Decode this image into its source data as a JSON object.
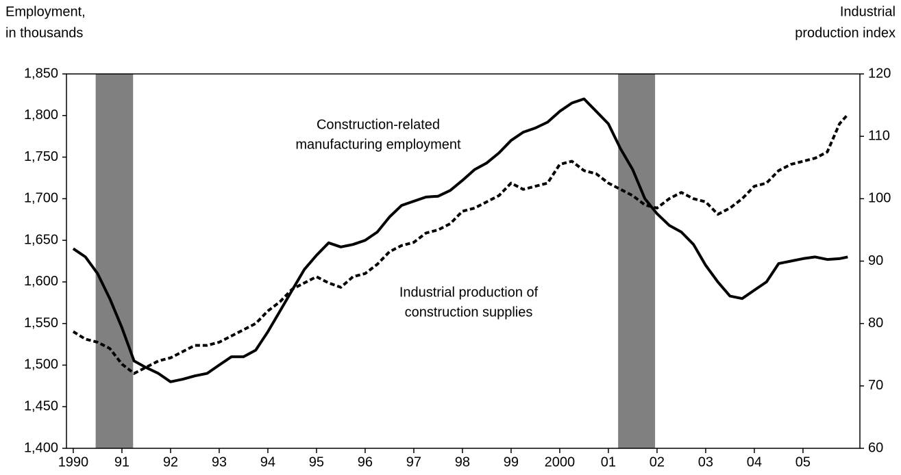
{
  "chart_data": {
    "type": "line",
    "ylabel": [
      "Employment,",
      "in thousands"
    ],
    "y2label": [
      "Industrial",
      "production index"
    ],
    "annotations": [
      [
        "Construction-related",
        "manufacturing employment"
      ],
      [
        "Industrial production of",
        "construction supplies"
      ]
    ],
    "shaded_periods": [
      [
        1990.46,
        1991.23
      ],
      [
        2001.2,
        2001.96
      ]
    ],
    "shade_color": "#808080",
    "xlim": [
      1989.86,
      2006.17
    ],
    "xticks": [
      {
        "value": 1990,
        "label": "1990"
      },
      {
        "value": 1991,
        "label": "91"
      },
      {
        "value": 1992,
        "label": "92"
      },
      {
        "value": 1993,
        "label": "93"
      },
      {
        "value": 1994,
        "label": "94"
      },
      {
        "value": 1995,
        "label": "95"
      },
      {
        "value": 1996,
        "label": "96"
      },
      {
        "value": 1997,
        "label": "97"
      },
      {
        "value": 1998,
        "label": "98"
      },
      {
        "value": 1999,
        "label": "99"
      },
      {
        "value": 2000,
        "label": "2000"
      },
      {
        "value": 2001,
        "label": "01"
      },
      {
        "value": 2002,
        "label": "02"
      },
      {
        "value": 2003,
        "label": "03"
      },
      {
        "value": 2004,
        "label": "04"
      },
      {
        "value": 2005,
        "label": "05"
      }
    ],
    "ylim": [
      1400,
      1850
    ],
    "yticks": [
      {
        "value": 1400,
        "label": "1,400"
      },
      {
        "value": 1450,
        "label": "1,450"
      },
      {
        "value": 1500,
        "label": "1,500"
      },
      {
        "value": 1550,
        "label": "1,550"
      },
      {
        "value": 1600,
        "label": "1,600"
      },
      {
        "value": 1650,
        "label": "1,650"
      },
      {
        "value": 1700,
        "label": "1,700"
      },
      {
        "value": 1750,
        "label": "1,750"
      },
      {
        "value": 1800,
        "label": "1,800"
      },
      {
        "value": 1850,
        "label": "1,850"
      }
    ],
    "y2lim": [
      60,
      120
    ],
    "y2ticks": [
      60,
      70,
      80,
      90,
      100,
      110,
      120
    ],
    "x": [
      1990,
      1990.25,
      1990.5,
      1990.75,
      1991,
      1991.25,
      1991.5,
      1991.75,
      1992,
      1992.25,
      1992.5,
      1992.75,
      1993,
      1993.25,
      1993.5,
      1993.75,
      1994,
      1994.25,
      1994.5,
      1994.75,
      1995,
      1995.25,
      1995.5,
      1995.75,
      1996,
      1996.25,
      1996.5,
      1996.75,
      1997,
      1997.25,
      1997.5,
      1997.75,
      1998,
      1998.25,
      1998.5,
      1998.75,
      1999,
      1999.25,
      1999.5,
      1999.75,
      2000,
      2000.25,
      2000.5,
      2000.75,
      2001,
      2001.25,
      2001.5,
      2001.75,
      2002,
      2002.25,
      2002.5,
      2002.75,
      2003,
      2003.25,
      2003.5,
      2003.75,
      2004,
      2004.25,
      2004.5,
      2004.75,
      2005,
      2005.25,
      2005.5,
      2005.75,
      2005.92
    ],
    "series": [
      {
        "color": "#000000",
        "dashed": false,
        "values": [
          1640,
          1630,
          1610,
          1580,
          1545,
          1505,
          1497,
          1490,
          1480,
          1483,
          1487,
          1490,
          1500,
          1510,
          1510,
          1518,
          1540,
          1565,
          1590,
          1615,
          1632,
          1647,
          1642,
          1645,
          1650,
          1660,
          1678,
          1692,
          1697,
          1702,
          1703,
          1710,
          1722,
          1735,
          1743,
          1755,
          1770,
          1780,
          1785,
          1792,
          1805,
          1815,
          1820,
          1805,
          1790,
          1760,
          1735,
          1700,
          1682,
          1668,
          1660,
          1645,
          1620,
          1600,
          1583,
          1580,
          1590,
          1600,
          1622,
          1625,
          1628,
          1630,
          1627,
          1628,
          1630
        ]
      },
      {
        "color": "#000000",
        "dashed": true,
        "axis": "y2",
        "values": [
          78.7,
          77.5,
          77,
          76,
          73.5,
          72,
          73,
          74,
          74.5,
          75.5,
          76.5,
          76.5,
          77,
          78,
          79,
          80,
          82,
          83.5,
          85.5,
          86.5,
          87.5,
          86.5,
          85.8,
          87.5,
          88,
          89.5,
          91.5,
          92.5,
          93,
          94.5,
          95,
          96,
          98,
          98.5,
          99.5,
          100.5,
          102.5,
          101.5,
          102,
          102.5,
          105.5,
          106,
          104.5,
          104,
          102.5,
          101.5,
          100.5,
          99,
          98.5,
          100,
          101,
          100,
          99.5,
          97.5,
          98.5,
          100,
          102,
          102.5,
          104.5,
          105.5,
          106,
          106.5,
          107.5,
          112,
          113.5
        ]
      }
    ]
  }
}
